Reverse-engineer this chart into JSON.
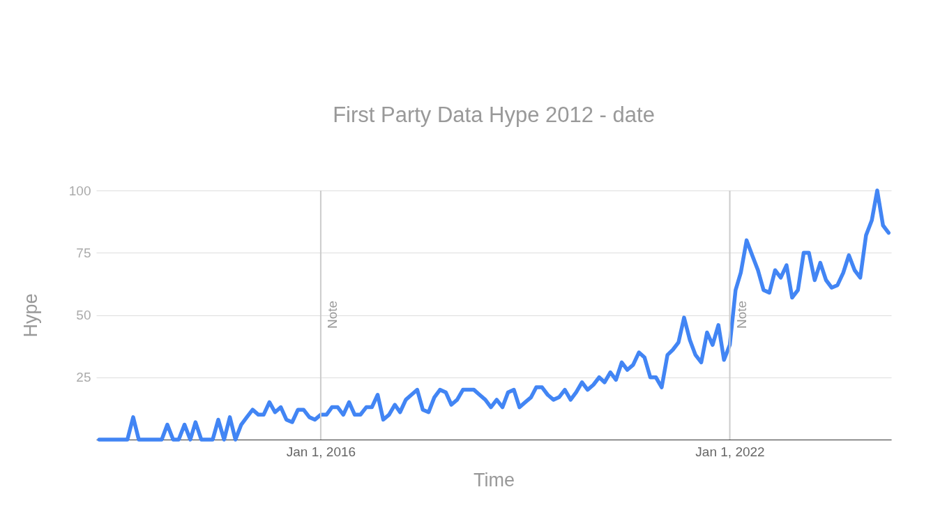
{
  "chart_data": {
    "type": "line",
    "title": "First Party Data Hype 2012 - date",
    "xlabel": "Time",
    "ylabel": "Hype",
    "x": [
      "2012-10",
      "2013-03",
      "2013-04",
      "2013-05",
      "2013-09",
      "2013-10",
      "2013-11",
      "2013-12",
      "2014-01",
      "2014-02",
      "2014-03",
      "2014-04",
      "2014-06",
      "2014-07",
      "2014-08",
      "2014-09",
      "2014-10",
      "2014-11",
      "2014-12",
      "2015-01",
      "2015-02",
      "2015-03",
      "2015-04",
      "2015-05",
      "2015-06",
      "2015-07",
      "2015-08",
      "2015-09",
      "2015-10",
      "2015-11",
      "2015-12",
      "2016-01",
      "2016-02",
      "2016-03",
      "2016-04",
      "2016-05",
      "2016-06",
      "2016-07",
      "2016-08",
      "2016-09",
      "2016-10",
      "2016-11",
      "2016-12",
      "2017-01",
      "2017-02",
      "2017-03",
      "2017-04",
      "2017-05",
      "2017-06",
      "2017-07",
      "2017-08",
      "2017-09",
      "2017-10",
      "2017-11",
      "2017-12",
      "2018-01",
      "2018-02",
      "2018-03",
      "2018-04",
      "2018-05",
      "2018-06",
      "2018-07",
      "2018-08",
      "2018-09",
      "2018-10",
      "2018-11",
      "2018-12",
      "2019-01",
      "2019-02",
      "2019-03",
      "2019-04",
      "2019-05",
      "2019-06",
      "2019-07",
      "2019-08",
      "2019-09",
      "2019-10",
      "2019-11",
      "2019-12",
      "2020-01",
      "2020-02",
      "2020-03",
      "2020-04",
      "2020-05",
      "2020-06",
      "2020-07",
      "2020-08",
      "2020-09",
      "2020-10",
      "2020-11",
      "2020-12",
      "2021-01",
      "2021-02",
      "2021-03",
      "2021-04",
      "2021-05",
      "2021-06",
      "2021-07",
      "2021-08",
      "2021-09",
      "2021-10",
      "2021-11",
      "2021-12",
      "2022-01",
      "2022-02",
      "2022-03",
      "2022-04",
      "2022-05",
      "2022-06",
      "2022-07",
      "2022-08",
      "2022-09",
      "2022-10",
      "2022-11",
      "2022-12",
      "2023-01",
      "2023-02",
      "2023-03",
      "2023-04",
      "2023-05",
      "2023-06",
      "2023-07",
      "2023-08",
      "2023-09",
      "2023-10",
      "2023-11",
      "2023-12",
      "2024-01",
      "2024-02",
      "2024-03",
      "2024-04",
      "2024-05"
    ],
    "series": [
      {
        "color": "#4285f4",
        "values": [
          0,
          0,
          9,
          0,
          0,
          6,
          0,
          0,
          6,
          0,
          7,
          0,
          0,
          8,
          0,
          9,
          0,
          6,
          9,
          12,
          10,
          10,
          15,
          11,
          13,
          8,
          7,
          12,
          12,
          9,
          8,
          10,
          10,
          13,
          13,
          10,
          15,
          10,
          10,
          13,
          13,
          18,
          8,
          10,
          14,
          11,
          16,
          18,
          20,
          12,
          11,
          17,
          20,
          19,
          14,
          16,
          20,
          20,
          20,
          18,
          16,
          13,
          16,
          13,
          19,
          20,
          13,
          15,
          17,
          21,
          21,
          18,
          16,
          17,
          20,
          16,
          19,
          23,
          20,
          22,
          25,
          23,
          27,
          24,
          31,
          28,
          30,
          35,
          33,
          25,
          25,
          21,
          34,
          36,
          39,
          49,
          40,
          34,
          31,
          43,
          38,
          46,
          32,
          38,
          60,
          67,
          80,
          74,
          68,
          60,
          59,
          68,
          65,
          70,
          57,
          60,
          75,
          75,
          64,
          71,
          64,
          61,
          62,
          67,
          74,
          68,
          65,
          82,
          88,
          100,
          86,
          83
        ]
      }
    ],
    "xlim": [
      "2012-09-15",
      "2024-05-15"
    ],
    "xticks": [
      {
        "value": "2016-01-01",
        "label": "Jan 1, 2016"
      },
      {
        "value": "2022-01-01",
        "label": "Jan 1, 2022"
      }
    ],
    "ylim": [
      0,
      100
    ],
    "yticks": [
      {
        "value": 0,
        "label": null
      },
      25,
      50,
      75,
      100
    ],
    "grid": "y",
    "legend": false,
    "ref_lines": [
      {
        "axis": "x",
        "value": "2016-01-01",
        "label": "Note",
        "color": "#cccccc"
      },
      {
        "axis": "x",
        "value": "2022-01-01",
        "label": "Note",
        "color": "#cccccc"
      }
    ]
  }
}
